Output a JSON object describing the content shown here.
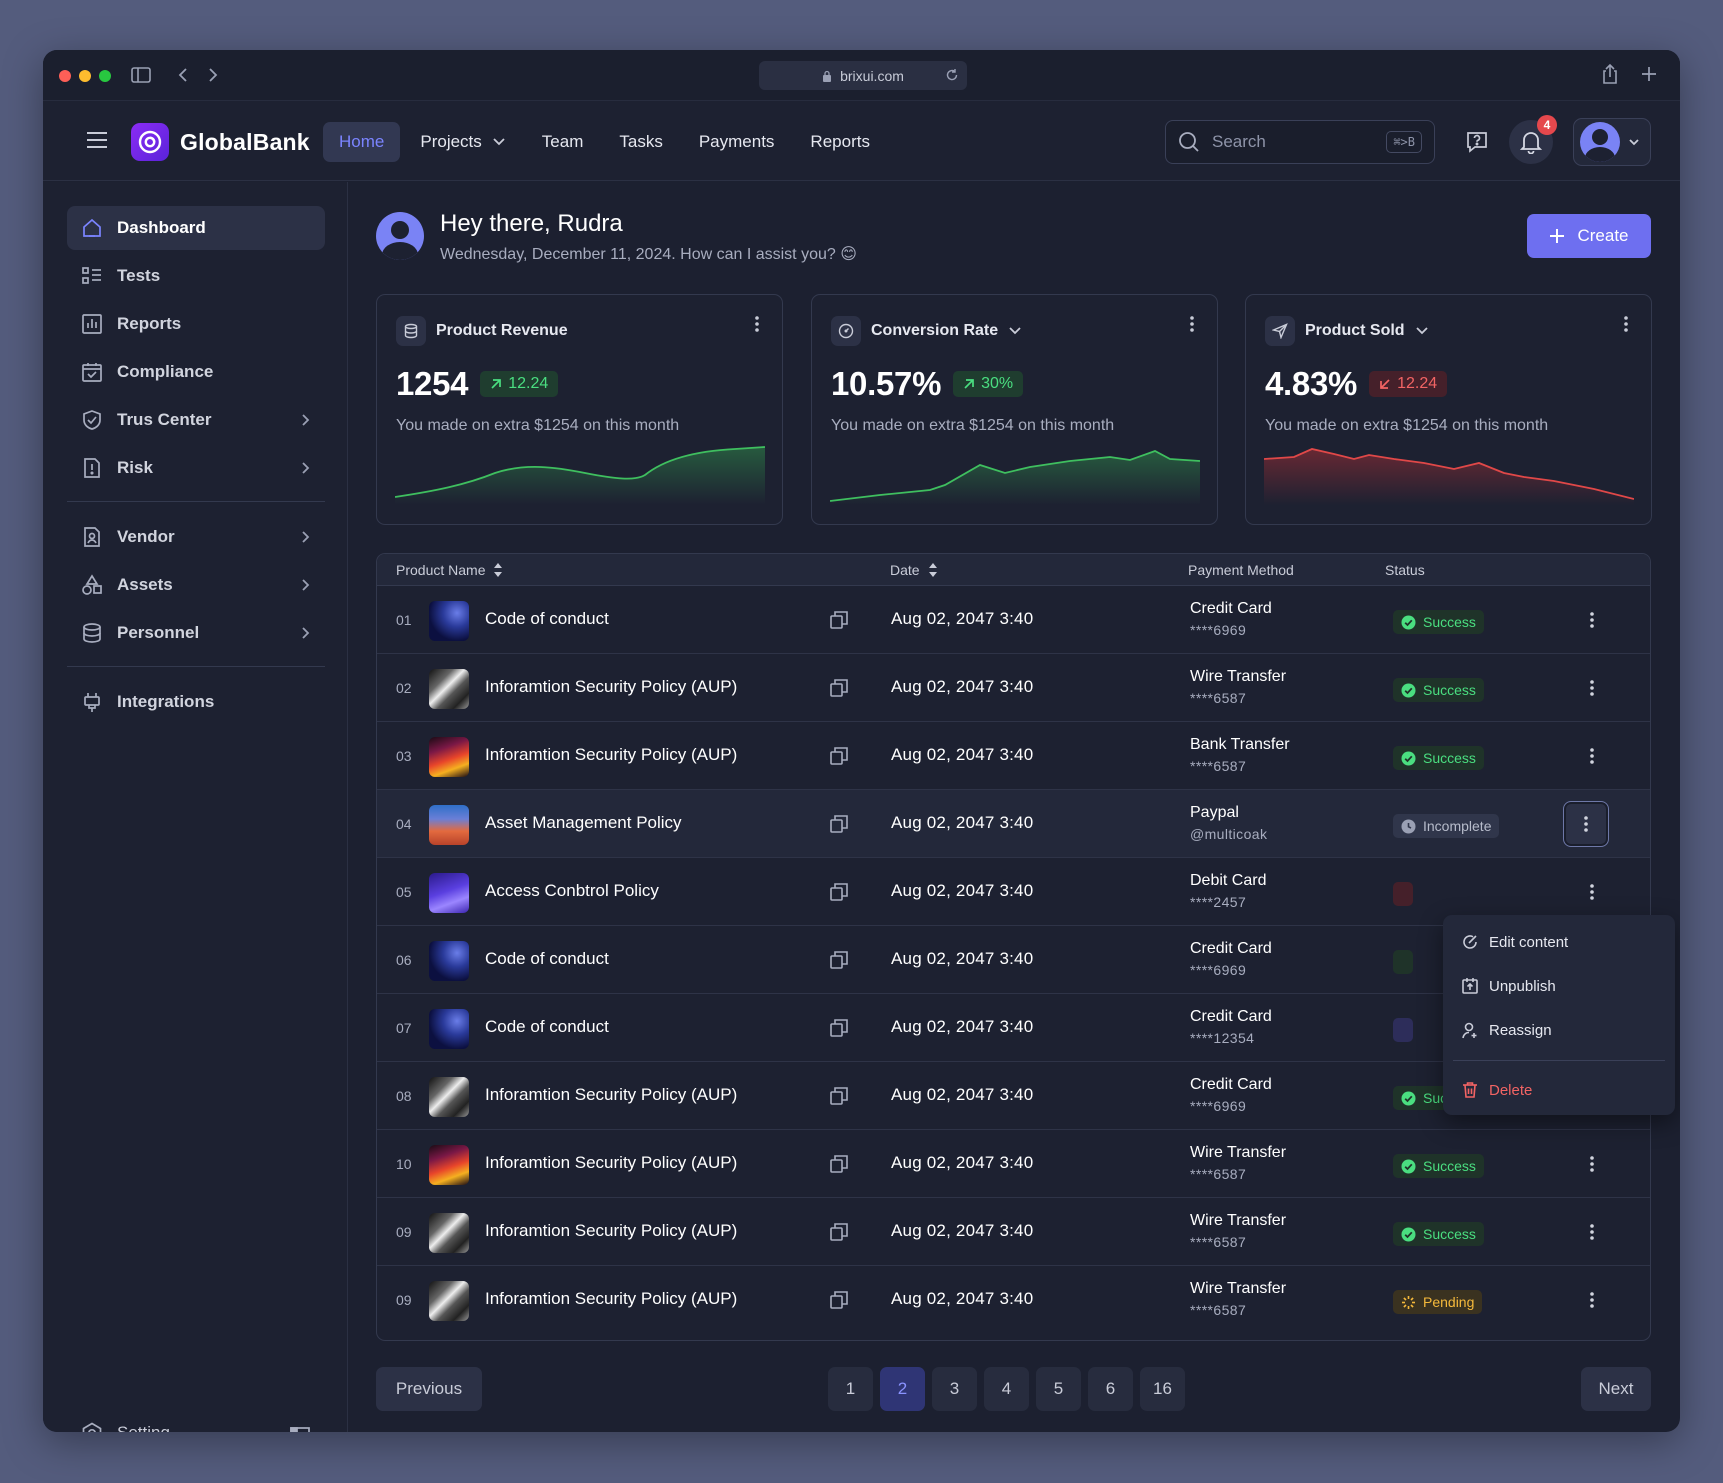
{
  "browser": {
    "url": "brixui.com"
  },
  "app": {
    "brand": "GlobalBank"
  },
  "nav": [
    {
      "label": "Home",
      "active": true
    },
    {
      "label": "Projects",
      "dropdown": true
    },
    {
      "label": "Team"
    },
    {
      "label": "Tasks"
    },
    {
      "label": "Payments"
    },
    {
      "label": "Reports"
    }
  ],
  "search": {
    "placeholder": "Search",
    "shortcut": "⌘>B"
  },
  "notifications": {
    "count": "4"
  },
  "sidebar": {
    "items": [
      {
        "label": "Dashboard",
        "icon": "home-icon",
        "active": true
      },
      {
        "label": "Tests",
        "icon": "list-icon"
      },
      {
        "label": "Reports",
        "icon": "chart-icon"
      },
      {
        "label": "Compliance",
        "icon": "calendar-check-icon"
      },
      {
        "label": "Trus Center",
        "icon": "shield-icon",
        "chevron": true
      },
      {
        "label": "Risk",
        "icon": "alert-file-icon",
        "chevron": true
      },
      {
        "label": "Vendor",
        "icon": "vendor-icon",
        "chevron": true
      },
      {
        "label": "Assets",
        "icon": "shapes-icon",
        "chevron": true
      },
      {
        "label": "Personnel",
        "icon": "database-icon",
        "chevron": true
      },
      {
        "label": "Integrations",
        "icon": "plug-icon"
      }
    ],
    "setting_label": "Setting"
  },
  "greeting": {
    "title": "Hey there, Rudra",
    "subtitle": "Wednesday, December 11, 2024. How can I assist you? 😊"
  },
  "create_label": "Create",
  "cards": [
    {
      "title": "Product Revenue",
      "value": "1254",
      "delta": "12.24",
      "trend": "up",
      "note": "You made on extra $1254 on this month",
      "dropdown": false,
      "color": "#3fbf5f"
    },
    {
      "title": "Conversion Rate",
      "value": "10.57%",
      "delta": "30%",
      "trend": "up",
      "note": "You made on extra $1254 on this month",
      "dropdown": true,
      "color": "#3fbf5f"
    },
    {
      "title": "Product Sold",
      "value": "4.83%",
      "delta": "12.24",
      "trend": "down",
      "note": "You made on extra $1254 on this month",
      "dropdown": true,
      "color": "#e04848"
    }
  ],
  "table": {
    "columns": {
      "name": "Product Name",
      "date": "Date",
      "payment": "Payment Method",
      "status": "Status"
    },
    "rows": [
      {
        "no": "01",
        "name": "Code of conduct",
        "thumb": "wave-blue",
        "date": "Aug 02, 2047 3:40",
        "method": "Credit Card",
        "detail": "****6969",
        "status": "Success",
        "kind": "success"
      },
      {
        "no": "02",
        "name": "Inforamtion Security Policy (AUP)",
        "thumb": "silver",
        "date": "Aug 02, 2047 3:40",
        "method": "Wire Transfer",
        "detail": "****6587",
        "status": "Success",
        "kind": "success"
      },
      {
        "no": "03",
        "name": "Inforamtion Security Policy (AUP)",
        "thumb": "flame",
        "date": "Aug 02, 2047 3:40",
        "method": "Bank Transfer",
        "detail": "****6587",
        "status": "Success",
        "kind": "success"
      },
      {
        "no": "04",
        "name": "Asset Management Policy",
        "thumb": "sunset",
        "date": "Aug 02, 2047 3:40",
        "method": "Paypal",
        "detail": "@multicoak",
        "status": "Incomplete",
        "kind": "incomplete",
        "highlight": true,
        "menu_open": true
      },
      {
        "no": "05",
        "name": "Access Conbtrol Policy",
        "thumb": "violet",
        "date": "Aug 02, 2047 3:40",
        "method": "Debit Card",
        "detail": "****2457",
        "status": "",
        "kind": "hidden-red"
      },
      {
        "no": "06",
        "name": "Code of conduct",
        "thumb": "wave-blue",
        "date": "Aug 02, 2047 3:40",
        "method": "Credit Card",
        "detail": "****6969",
        "status": "",
        "kind": "hidden-green"
      },
      {
        "no": "07",
        "name": "Code of conduct",
        "thumb": "wave-blue",
        "date": "Aug 02, 2047 3:40",
        "method": "Credit Card",
        "detail": "****12354",
        "status": "",
        "kind": "hidden-purple"
      },
      {
        "no": "08",
        "name": "Inforamtion Security Policy (AUP)",
        "thumb": "silver",
        "date": "Aug 02, 2047 3:40",
        "method": "Credit Card",
        "detail": "****6969",
        "status": "Success",
        "kind": "success"
      },
      {
        "no": "10",
        "name": "Inforamtion Security Policy (AUP)",
        "thumb": "flame",
        "date": "Aug 02, 2047 3:40",
        "method": "Wire Transfer",
        "detail": "****6587",
        "status": "Success",
        "kind": "success"
      },
      {
        "no": "09",
        "name": "Inforamtion Security Policy (AUP)",
        "thumb": "silver",
        "date": "Aug 02, 2047 3:40",
        "method": "Wire Transfer",
        "detail": "****6587",
        "status": "Success",
        "kind": "success"
      },
      {
        "no": "09",
        "name": "Inforamtion Security Policy (AUP)",
        "thumb": "silver",
        "date": "Aug 02, 2047 3:40",
        "method": "Wire Transfer",
        "detail": "****6587",
        "status": "Pending",
        "kind": "pending"
      }
    ]
  },
  "row_menu": {
    "items": [
      {
        "label": "Edit content",
        "icon": "edit-icon"
      },
      {
        "label": "Unpublish",
        "icon": "unpublish-icon"
      },
      {
        "label": "Reassign",
        "icon": "user-icon"
      },
      {
        "label": "Delete",
        "icon": "trash-icon",
        "danger": true
      }
    ]
  },
  "pagination": {
    "previous": "Previous",
    "next": "Next",
    "pages": [
      "1",
      "2",
      "3",
      "4",
      "5",
      "6",
      "16"
    ],
    "current": "2"
  }
}
